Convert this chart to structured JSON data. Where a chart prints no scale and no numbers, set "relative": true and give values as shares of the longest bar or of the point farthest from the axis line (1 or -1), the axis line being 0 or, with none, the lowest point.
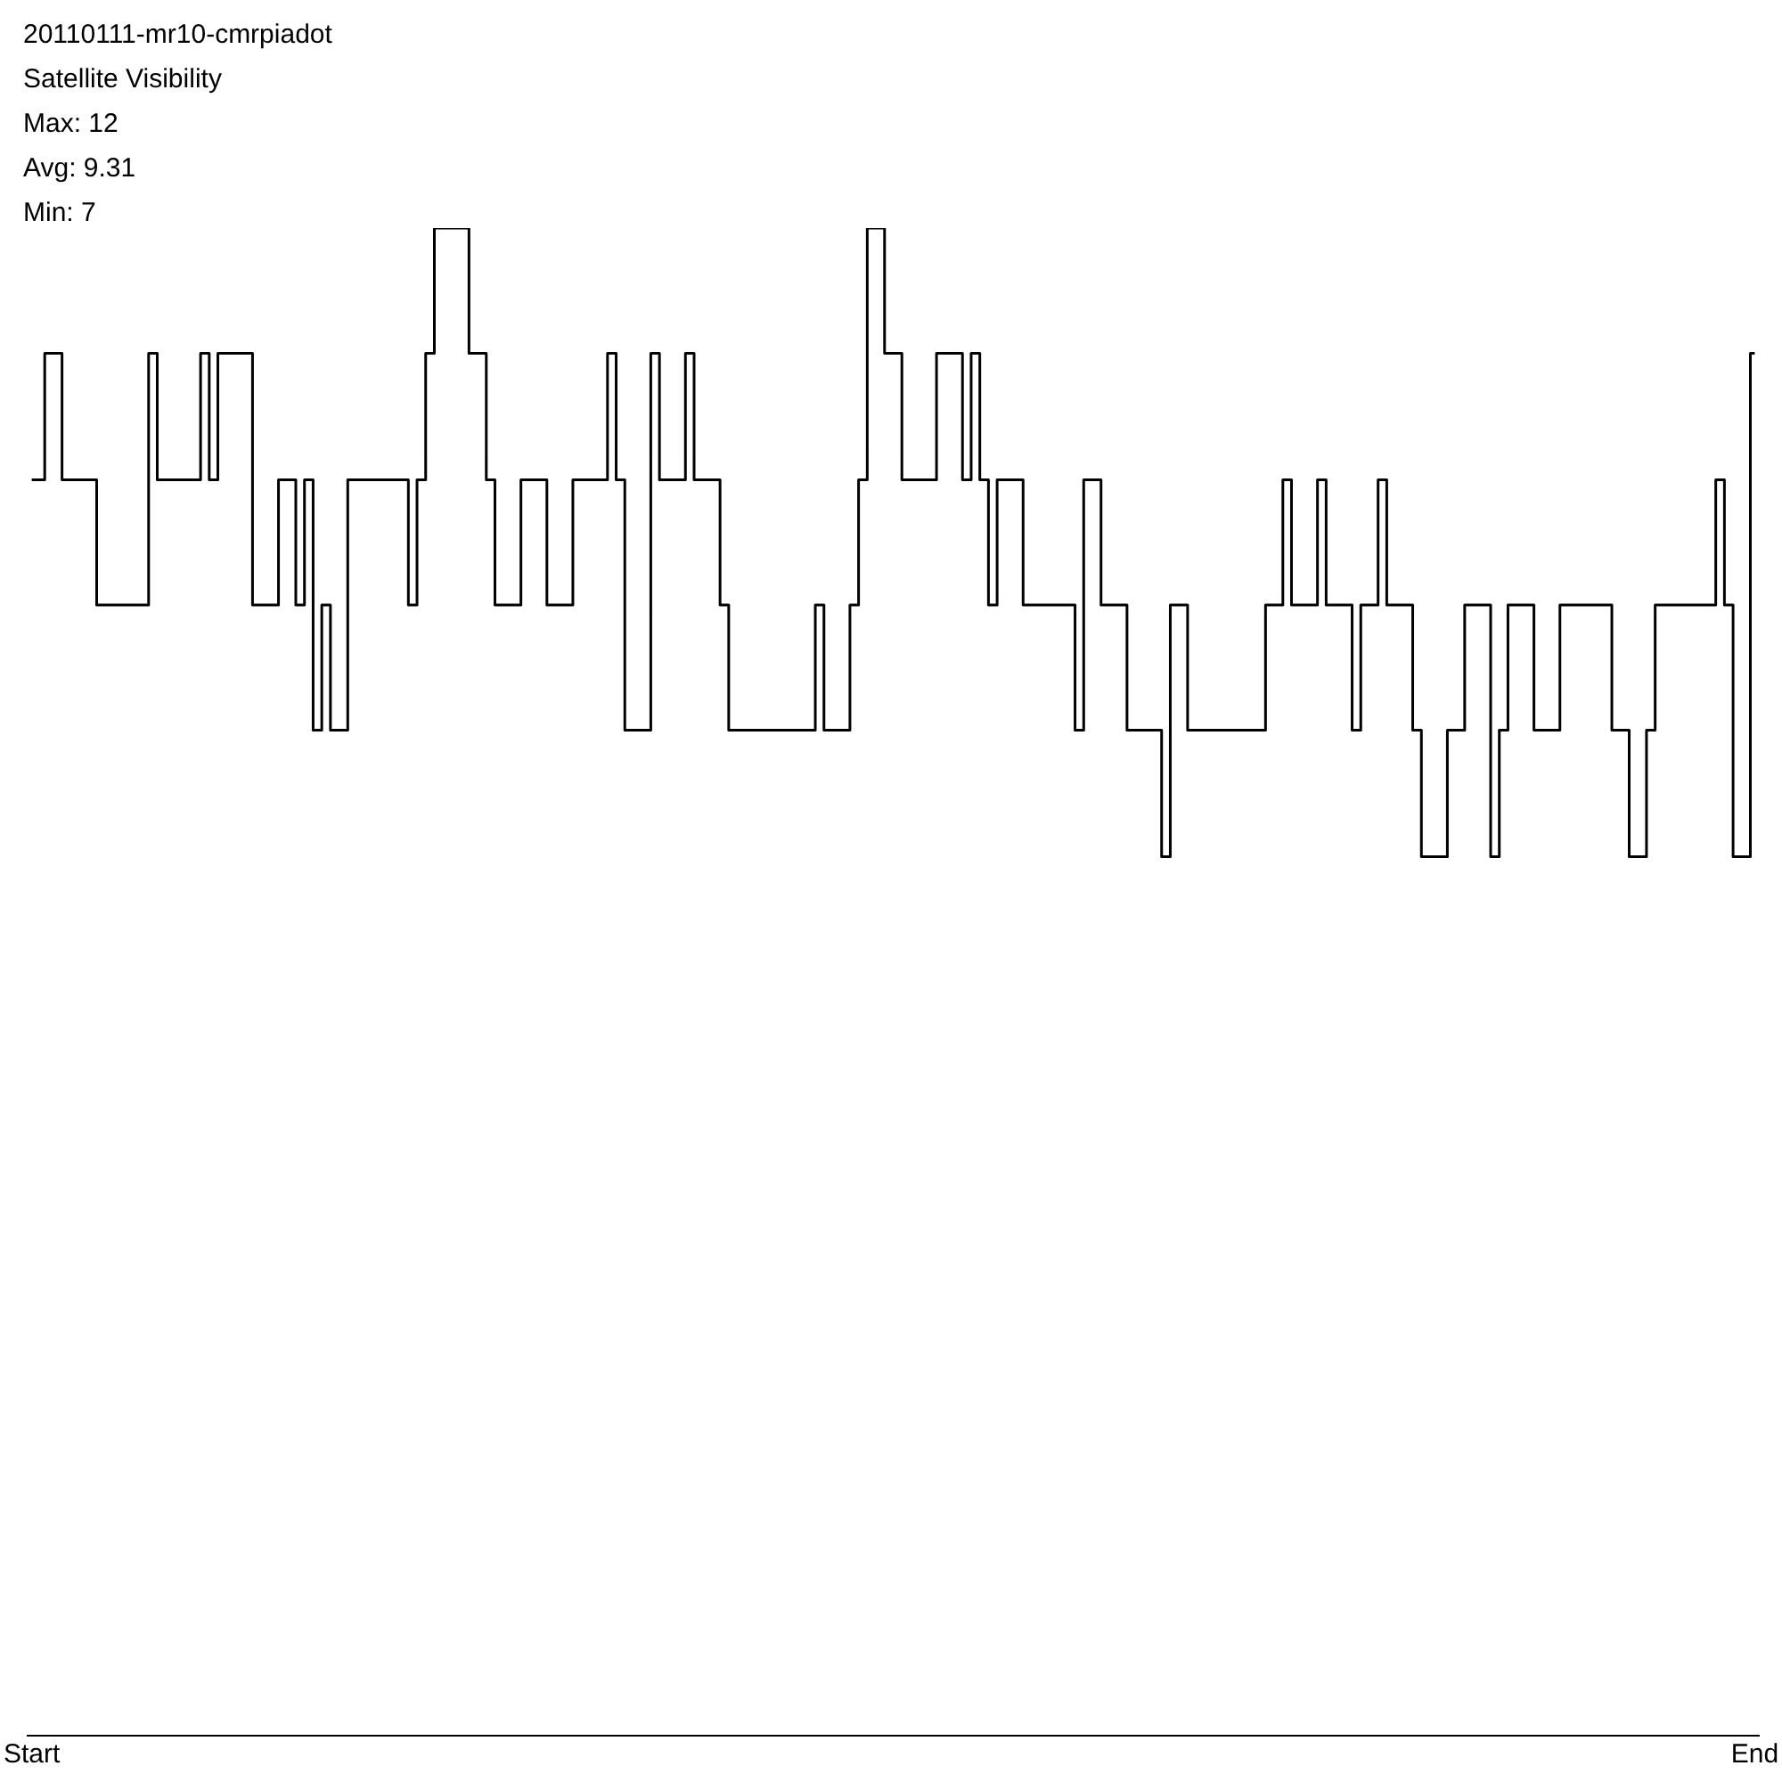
{
  "chart_data": {
    "type": "step",
    "title": "20110111-mr10-cmrpiadot",
    "subtitle": "Satellite Visibility",
    "annotations": [
      "Max: 12",
      "Avg: 9.31",
      "Min: 7"
    ],
    "relative": true,
    "grid": false,
    "legend": false,
    "marker": "none",
    "categories": [
      "Start",
      null,
      null,
      null,
      null,
      null,
      null,
      null,
      null,
      null,
      null,
      null,
      null,
      null,
      null,
      null,
      null,
      null,
      null,
      null,
      null,
      null,
      null,
      null,
      null,
      null,
      null,
      null,
      null,
      null,
      null,
      null,
      null,
      null,
      null,
      null,
      null,
      null,
      null,
      null,
      null,
      null,
      null,
      null,
      null,
      null,
      null,
      null,
      null,
      null,
      null,
      null,
      null,
      null,
      null,
      null,
      null,
      null,
      null,
      null,
      null,
      null,
      null,
      null,
      null,
      null,
      null,
      null,
      null,
      null,
      null,
      null,
      null,
      null,
      null,
      null,
      null,
      null,
      null,
      null,
      null,
      null,
      null,
      null,
      null,
      null,
      null,
      null,
      null,
      null,
      null,
      null,
      null,
      null,
      null,
      null,
      null,
      null,
      null,
      null,
      null,
      null,
      null,
      null,
      null,
      null,
      null,
      null,
      null,
      null,
      null,
      null,
      null,
      null,
      null,
      null,
      null,
      null,
      null,
      null,
      null,
      null,
      null,
      null,
      null,
      null,
      null,
      null,
      null,
      null,
      null,
      null,
      null,
      null,
      null,
      null,
      null,
      null,
      null,
      null,
      null,
      null,
      null,
      null,
      null,
      null,
      null,
      null,
      null,
      null,
      null,
      null,
      null,
      null,
      null,
      null,
      null,
      null,
      null,
      null,
      null,
      null,
      null,
      null,
      null,
      null,
      null,
      null,
      null,
      null,
      null,
      null,
      null,
      null,
      null,
      null,
      null,
      null,
      null,
      null,
      null,
      null,
      null,
      null,
      null,
      null,
      null,
      null,
      null,
      null,
      null,
      null,
      null,
      null,
      null,
      null,
      null,
      null,
      null,
      "End"
    ],
    "series": [
      {
        "color": "#000000",
        "values": [
          0.833,
          0.833,
          0.917,
          0.917,
          0.833,
          0.833,
          0.833,
          0.833,
          0.75,
          0.75,
          0.75,
          0.75,
          0.75,
          0.75,
          0.917,
          0.833,
          0.833,
          0.833,
          0.833,
          0.833,
          0.917,
          0.833,
          0.917,
          0.917,
          0.917,
          0.917,
          0.75,
          0.75,
          0.75,
          0.833,
          0.833,
          0.75,
          0.833,
          0.667,
          0.75,
          0.667,
          0.667,
          0.833,
          0.833,
          0.833,
          0.833,
          0.833,
          0.833,
          0.833,
          0.75,
          0.833,
          0.917,
          1,
          1,
          1,
          1,
          0.917,
          0.917,
          0.833,
          0.75,
          0.75,
          0.75,
          0.833,
          0.833,
          0.833,
          0.75,
          0.75,
          0.75,
          0.833,
          0.833,
          0.833,
          0.833,
          0.917,
          0.833,
          0.667,
          0.667,
          0.667,
          0.917,
          0.833,
          0.833,
          0.833,
          0.917,
          0.833,
          0.833,
          0.833,
          0.75,
          0.667,
          0.667,
          0.667,
          0.667,
          0.667,
          0.667,
          0.667,
          0.667,
          0.667,
          0.667,
          0.75,
          0.667,
          0.667,
          0.667,
          0.75,
          0.833,
          1,
          1,
          0.917,
          0.917,
          0.833,
          0.833,
          0.833,
          0.833,
          0.917,
          0.917,
          0.917,
          0.833,
          0.917,
          0.833,
          0.75,
          0.833,
          0.833,
          0.833,
          0.75,
          0.75,
          0.75,
          0.75,
          0.75,
          0.75,
          0.667,
          0.833,
          0.833,
          0.75,
          0.75,
          0.75,
          0.667,
          0.667,
          0.667,
          0.667,
          0.583,
          0.75,
          0.75,
          0.667,
          0.667,
          0.667,
          0.667,
          0.667,
          0.667,
          0.667,
          0.667,
          0.667,
          0.75,
          0.75,
          0.833,
          0.75,
          0.75,
          0.75,
          0.833,
          0.75,
          0.75,
          0.75,
          0.667,
          0.75,
          0.75,
          0.833,
          0.75,
          0.75,
          0.75,
          0.667,
          0.583,
          0.583,
          0.583,
          0.667,
          0.667,
          0.75,
          0.75,
          0.75,
          0.583,
          0.667,
          0.75,
          0.75,
          0.75,
          0.667,
          0.667,
          0.667,
          0.75,
          0.75,
          0.75,
          0.75,
          0.75,
          0.75,
          0.667,
          0.667,
          0.583,
          0.583,
          0.667,
          0.75,
          0.75,
          0.75,
          0.75,
          0.75,
          0.75,
          0.75,
          0.833,
          0.75,
          0.583,
          0.583,
          0.917
        ]
      }
    ]
  }
}
